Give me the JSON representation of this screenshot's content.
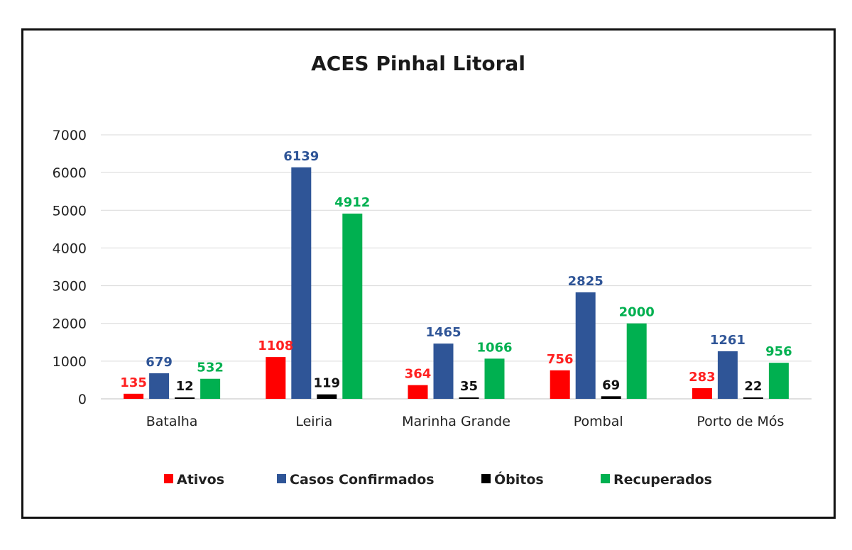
{
  "chart_data": {
    "type": "bar",
    "title": "ACES Pinhal Litoral",
    "xlabel": "",
    "ylabel": "",
    "ylim": [
      0,
      7000
    ],
    "yticks": [
      "0",
      "1000",
      "2000",
      "3000",
      "4000",
      "5000",
      "6000",
      "7000"
    ],
    "grid": true,
    "legend_position": "bottom",
    "categories": [
      "Batalha",
      "Leiria",
      "Marinha Grande",
      "Pombal",
      "Porto de Mós"
    ],
    "series": [
      {
        "name": "Ativos",
        "color": "#ff0000",
        "label_color": "#ff2020",
        "values": [
          135,
          1108,
          364,
          756,
          283
        ]
      },
      {
        "name": "Casos Confirmados",
        "color": "#2f5597",
        "label_color": "#2f5597",
        "values": [
          679,
          6139,
          1465,
          2825,
          1261
        ]
      },
      {
        "name": "Óbitos",
        "color": "#000000",
        "label_color": "#111111",
        "values": [
          12,
          119,
          35,
          69,
          22
        ]
      },
      {
        "name": "Recuperados",
        "color": "#00b050",
        "label_color": "#00b050",
        "values": [
          532,
          4912,
          1066,
          2000,
          956
        ]
      }
    ]
  }
}
